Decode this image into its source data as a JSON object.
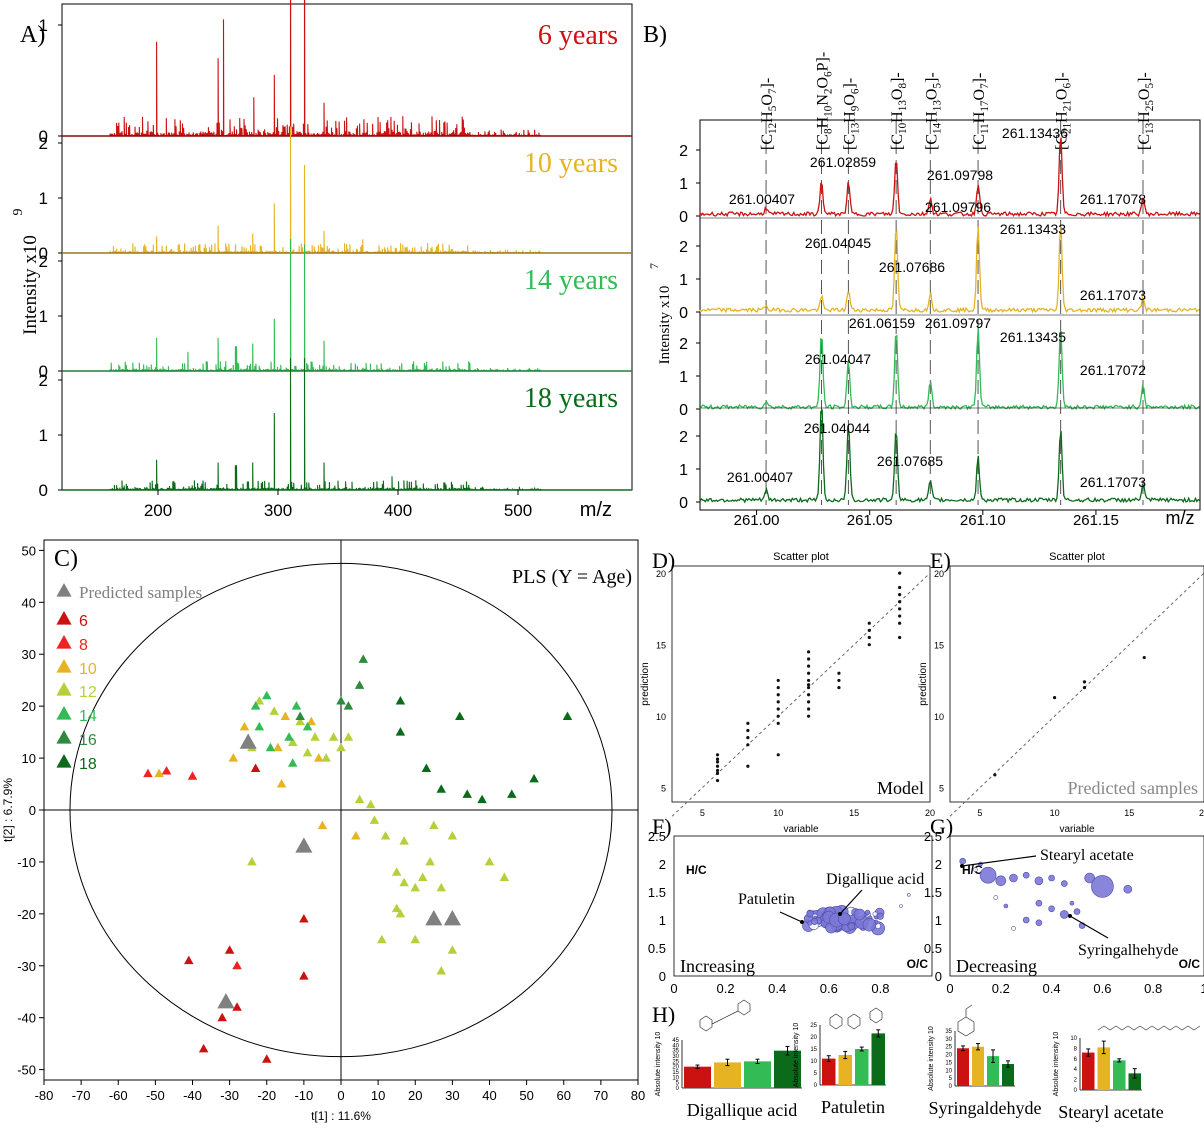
{
  "panel_labels": {
    "A": "A)",
    "B": "B)",
    "C": "C)",
    "D": "D)",
    "E": "E)",
    "F": "F)",
    "G": "G)",
    "H": "H)"
  },
  "colors": {
    "y6": "#cc1111",
    "y8": "#ee2222",
    "y10": "#e6b422",
    "y12": "#b5d13a",
    "y14": "#33bb55",
    "y16": "#2e8b3e",
    "y18": "#0b6b1a",
    "pred": "#808080",
    "bubble": "#7b78d6"
  },
  "panelA": {
    "ylabel": "Intensity x10",
    "ylabel_exp": "9",
    "xlabel": "m/z",
    "xticks": [
      200,
      300,
      400,
      500
    ],
    "traces": [
      {
        "label": "6 years",
        "color": "#cc1111",
        "yticks": [
          0,
          1
        ]
      },
      {
        "label": "10 years",
        "color": "#e6b422",
        "yticks": [
          0,
          1,
          2
        ]
      },
      {
        "label": "14 years",
        "color": "#33bb55",
        "yticks": [
          0,
          1,
          2
        ]
      },
      {
        "label": "18 years",
        "color": "#0b6b1a",
        "yticks": [
          0,
          1,
          2
        ]
      }
    ]
  },
  "panelB": {
    "ylabel": "Intensity x10",
    "ylabel_exp": "7",
    "xlabel": "m/z",
    "xticks": [
      "261.00",
      "261.05",
      "261.10",
      "261.15"
    ],
    "formulas": [
      "[C12H5O7]-",
      "[C8H10N2O6P]-",
      "[C13H9O6]-",
      "[C10H13O8]-",
      "[C14H13O5]-",
      "[C11H17O7]-",
      "[C21H21O6]-",
      "[C13H25O5]-"
    ],
    "trace_colors": [
      "#cc1111",
      "#e6b422",
      "#33bb55",
      "#0b6b1a"
    ],
    "yticks": [
      0,
      1,
      2
    ],
    "peak_labels": [
      [
        "261.00407",
        "261.02859",
        "261.09798",
        "261.13436",
        "261.17078"
      ],
      [
        "261.04045",
        "261.07686",
        "261.09796",
        "261.13433",
        "261.17073"
      ],
      [
        "261.04047",
        "261.06159",
        "261.09797",
        "261.13435",
        "261.17072"
      ],
      [
        "261.00407",
        "261.04044",
        "261.07685",
        "261.17073"
      ]
    ]
  },
  "chart_data": [
    {
      "type": "scatter",
      "title": "PLS (Y = Age)",
      "xlabel": "t[1] : 11.6%",
      "ylabel": "t[2] : 6.7.9%",
      "xlim": [
        -80,
        80
      ],
      "ylim": [
        -52,
        52
      ],
      "xticks": [
        -80,
        -70,
        -60,
        -50,
        -40,
        -30,
        -20,
        -10,
        0,
        10,
        20,
        30,
        40,
        50,
        60,
        70,
        80
      ],
      "yticks": [
        -50,
        -40,
        -30,
        -20,
        -10,
        0,
        10,
        20,
        30,
        40,
        50
      ],
      "legend": [
        "Predicted samples",
        "6",
        "8",
        "10",
        "12",
        "14",
        "16",
        "18"
      ],
      "series": [
        {
          "name": "6",
          "color": "#cc1111",
          "points": [
            [
              -28,
              -38
            ],
            [
              -32,
              -40
            ],
            [
              -37,
              -46
            ],
            [
              -20,
              -48
            ],
            [
              -10,
              -32
            ],
            [
              -10,
              -21
            ],
            [
              -30,
              -27
            ],
            [
              -41,
              -29
            ],
            [
              -23,
              8
            ]
          ]
        },
        {
          "name": "8",
          "color": "#ee2222",
          "points": [
            [
              -52,
              7
            ],
            [
              -47,
              7.5
            ],
            [
              -40,
              6.5
            ],
            [
              -28,
              -30
            ]
          ]
        },
        {
          "name": "10",
          "color": "#e6b422",
          "points": [
            [
              -49,
              7
            ],
            [
              -29,
              10
            ],
            [
              -26,
              16
            ],
            [
              -15,
              18
            ],
            [
              -8,
              17
            ],
            [
              -6,
              10
            ],
            [
              -16,
              5
            ],
            [
              -17,
              12
            ],
            [
              4,
              -5
            ],
            [
              -5,
              -3
            ]
          ]
        },
        {
          "name": "12",
          "color": "#b5d13a",
          "points": [
            [
              -24,
              -10
            ],
            [
              -22,
              21
            ],
            [
              -18,
              19
            ],
            [
              -11,
              17
            ],
            [
              -9,
              11
            ],
            [
              -7,
              14
            ],
            [
              -4,
              10
            ],
            [
              -2,
              14
            ],
            [
              0,
              12
            ],
            [
              2,
              14
            ],
            [
              5,
              2
            ],
            [
              8,
              1
            ],
            [
              15,
              -12
            ],
            [
              17,
              -14
            ],
            [
              20,
              -15
            ],
            [
              22,
              -13
            ],
            [
              24,
              -10
            ],
            [
              27,
              -15
            ],
            [
              20,
              -25
            ],
            [
              16,
              -20
            ],
            [
              27,
              -31
            ],
            [
              30,
              -27
            ],
            [
              44,
              -13
            ],
            [
              40,
              -10
            ],
            [
              30,
              -5
            ],
            [
              25,
              -3
            ],
            [
              17,
              -6
            ],
            [
              12,
              -5
            ],
            [
              9,
              -2
            ],
            [
              11,
              -25
            ],
            [
              15,
              -19
            ],
            [
              -24,
              12
            ],
            [
              -13,
              13
            ]
          ]
        },
        {
          "name": "14",
          "color": "#33bb55",
          "points": [
            [
              -23,
              20
            ],
            [
              -20,
              22
            ],
            [
              -14,
              14
            ],
            [
              -13,
              9
            ],
            [
              -9,
              16
            ],
            [
              -19,
              12
            ],
            [
              -12,
              20
            ],
            [
              -22,
              16
            ]
          ]
        },
        {
          "name": "16",
          "color": "#2e8b3e",
          "points": [
            [
              5,
              24
            ],
            [
              6,
              29
            ],
            [
              2,
              20
            ],
            [
              0,
              21
            ],
            [
              -11,
              18
            ]
          ]
        },
        {
          "name": "18",
          "color": "#0b6b1a",
          "points": [
            [
              16,
              21
            ],
            [
              16,
              15
            ],
            [
              32,
              18
            ],
            [
              23,
              8
            ],
            [
              34,
              3
            ],
            [
              38,
              2
            ],
            [
              46,
              3
            ],
            [
              52,
              6
            ],
            [
              61,
              18
            ],
            [
              27,
              4
            ]
          ]
        },
        {
          "name": "Predicted samples",
          "color": "#808080",
          "points": [
            [
              -25,
              13
            ],
            [
              -10,
              -7
            ],
            [
              25,
              -21
            ],
            [
              30,
              -21
            ],
            [
              -31,
              -37
            ]
          ]
        }
      ]
    },
    {
      "type": "scatter",
      "title": "Scatter plot",
      "xlabel": "variable",
      "ylabel": "prediction",
      "annotation": "Model",
      "xlim": [
        3,
        20
      ],
      "ylim": [
        4,
        20.5
      ],
      "xticks": [
        5,
        10,
        15,
        20
      ],
      "yticks": [
        5,
        10,
        15,
        20
      ],
      "points": [
        [
          6,
          5.5
        ],
        [
          6,
          6
        ],
        [
          6,
          6.2
        ],
        [
          6,
          6.5
        ],
        [
          6,
          6.8
        ],
        [
          6,
          7
        ],
        [
          6,
          7.3
        ],
        [
          8,
          8
        ],
        [
          8,
          8.5
        ],
        [
          8,
          9
        ],
        [
          8,
          9.5
        ],
        [
          8,
          6.5
        ],
        [
          10,
          7.3
        ],
        [
          10,
          9.5
        ],
        [
          10,
          10
        ],
        [
          10,
          10.5
        ],
        [
          10,
          11
        ],
        [
          10,
          11.5
        ],
        [
          10,
          12
        ],
        [
          10,
          12.5
        ],
        [
          12,
          10
        ],
        [
          12,
          10.5
        ],
        [
          12,
          11
        ],
        [
          12,
          11.5
        ],
        [
          12,
          12
        ],
        [
          12,
          12.2
        ],
        [
          12,
          12.5
        ],
        [
          12,
          13
        ],
        [
          12,
          13.5
        ],
        [
          12,
          14
        ],
        [
          12,
          14.5
        ],
        [
          14,
          12
        ],
        [
          14,
          12.5
        ],
        [
          14,
          13
        ],
        [
          16,
          15
        ],
        [
          16,
          15.5
        ],
        [
          16,
          16
        ],
        [
          16,
          16.5
        ],
        [
          18,
          15.5
        ],
        [
          18,
          16.5
        ],
        [
          18,
          17
        ],
        [
          18,
          17.5
        ],
        [
          18,
          18
        ],
        [
          18,
          18.5
        ],
        [
          18,
          19
        ],
        [
          18,
          20
        ]
      ]
    },
    {
      "type": "scatter",
      "title": "Scatter plot",
      "xlabel": "variable",
      "ylabel": "prediction",
      "annotation": "Predicted samples",
      "xlim": [
        3,
        20
      ],
      "ylim": [
        4,
        20.5
      ],
      "xticks": [
        5,
        10,
        15,
        20
      ],
      "yticks": [
        5,
        10,
        15,
        20
      ],
      "points": [
        [
          6,
          5.9
        ],
        [
          10,
          11.3
        ],
        [
          12,
          12
        ],
        [
          12,
          12.4
        ],
        [
          16,
          14.1
        ]
      ]
    },
    {
      "type": "scatter",
      "annotation": "Increasing",
      "xlabel": "O/C",
      "ylabel": "H/C",
      "labels": [
        "Patuletin",
        "Digallique acid"
      ],
      "xlim": [
        0,
        1
      ],
      "ylim": [
        0,
        2.5
      ],
      "xticks": [
        "0",
        "0.2",
        "0.4",
        "0.6",
        "0.8"
      ],
      "yticks": [
        "0",
        "0.5",
        "1",
        "1.5",
        "2",
        "2.5"
      ]
    },
    {
      "type": "scatter",
      "annotation": "Decreasing",
      "xlabel": "O/C",
      "ylabel": "H/C",
      "labels": [
        "Stearyl acetate",
        "Syringalhehyde"
      ],
      "xlim": [
        0,
        1
      ],
      "ylim": [
        0,
        2.5
      ],
      "xticks": [
        "0",
        "0.2",
        "0.4",
        "0.6",
        "0.8",
        "1"
      ],
      "yticks": [
        "0",
        "0.5",
        "1",
        "1.5",
        "2",
        "2.5"
      ]
    },
    {
      "type": "bar",
      "ylabel": "Absolute intensity 10",
      "ylabel_exp": "7",
      "categories": [
        "6",
        "10",
        "14",
        "18"
      ],
      "colors": [
        "#cc1111",
        "#e6b422",
        "#33bb55",
        "#0b6b1a"
      ],
      "groups": [
        {
          "name": "Digallique acid",
          "values": [
            20,
            24,
            25,
            35
          ],
          "errors": [
            1.5,
            3,
            2,
            4
          ],
          "ylim": [
            0,
            45
          ],
          "yticks": [
            "0",
            "5",
            "10",
            "15",
            "20",
            "25",
            "30",
            "35",
            "40",
            "45"
          ]
        },
        {
          "name": "Patuletin",
          "values": [
            11,
            12.5,
            15,
            21.5
          ],
          "errors": [
            1.2,
            1.5,
            0.8,
            1.5
          ],
          "ylim": [
            0,
            25
          ],
          "yticks": [
            "0",
            "5",
            "10",
            "15",
            "20",
            "25"
          ]
        },
        {
          "name": "Syringaldehyde",
          "values": [
            24,
            25,
            19,
            14
          ],
          "errors": [
            1.5,
            2,
            4,
            2
          ],
          "ylim": [
            0,
            35
          ],
          "yticks": [
            "0",
            "5",
            "10",
            "15",
            "20",
            "25",
            "30",
            "35"
          ]
        },
        {
          "name": "Stearyl acetate",
          "values": [
            7.2,
            8.2,
            5.7,
            3.2
          ],
          "errors": [
            0.7,
            1.2,
            0.3,
            0.9
          ],
          "ylim": [
            0,
            10
          ],
          "yticks": [
            "0",
            "2",
            "4",
            "6",
            "8",
            "10"
          ]
        }
      ]
    }
  ]
}
